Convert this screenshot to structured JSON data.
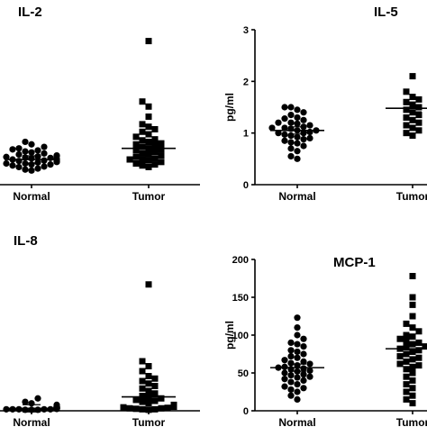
{
  "chart_data": [
    {
      "id": "il2",
      "type": "scatter",
      "title": "IL-2",
      "ylabel": "",
      "ylim": [
        0,
        3.2
      ],
      "yticks": [],
      "show_y_axis": false,
      "categories": [
        "Normal",
        "Tumor"
      ],
      "series": [
        {
          "marker": "circle",
          "values": [
            0.28,
            0.3,
            0.32,
            0.35,
            0.36,
            0.38,
            0.4,
            0.4,
            0.42,
            0.42,
            0.44,
            0.45,
            0.46,
            0.47,
            0.48,
            0.48,
            0.5,
            0.5,
            0.51,
            0.52,
            0.53,
            0.54,
            0.55,
            0.56,
            0.57,
            0.58,
            0.6,
            0.62,
            0.64,
            0.66,
            0.68,
            0.7,
            0.72,
            0.75,
            0.8,
            0.85
          ],
          "center": 0.5
        },
        {
          "marker": "square",
          "values": [
            0.35,
            0.38,
            0.4,
            0.42,
            0.45,
            0.48,
            0.5,
            0.5,
            0.52,
            0.55,
            0.58,
            0.6,
            0.62,
            0.65,
            0.68,
            0.7,
            0.72,
            0.75,
            0.78,
            0.8,
            0.82,
            0.85,
            0.88,
            0.9,
            0.95,
            1.0,
            1.05,
            1.1,
            1.15,
            1.2,
            1.35,
            1.55,
            1.65,
            2.85
          ],
          "center": 0.72
        }
      ]
    },
    {
      "id": "il5",
      "type": "scatter",
      "title": "IL-5",
      "ylabel": "pg/ml",
      "ylim": [
        0,
        3
      ],
      "yticks": [
        0,
        1,
        2,
        3
      ],
      "show_y_axis": true,
      "categories": [
        "Normal",
        "Tumor"
      ],
      "series": [
        {
          "marker": "circle",
          "values": [
            0.5,
            0.55,
            0.65,
            0.7,
            0.75,
            0.8,
            0.82,
            0.85,
            0.88,
            0.9,
            0.92,
            0.95,
            0.97,
            1.0,
            1.0,
            1.02,
            1.05,
            1.05,
            1.08,
            1.1,
            1.1,
            1.12,
            1.15,
            1.18,
            1.2,
            1.2,
            1.25,
            1.28,
            1.3,
            1.35,
            1.4,
            1.45,
            1.5,
            1.5
          ],
          "center": 1.05
        },
        {
          "marker": "square",
          "values": [
            0.95,
            1.0,
            1.05,
            1.1,
            1.15,
            1.2,
            1.25,
            1.3,
            1.35,
            1.4,
            1.45,
            1.5,
            1.55,
            1.6,
            1.65,
            1.7,
            1.8,
            2.1
          ],
          "center": 1.48
        }
      ]
    },
    {
      "id": "il8",
      "type": "scatter",
      "title": "IL-8",
      "ylabel": "",
      "ylim": [
        0,
        3.2
      ],
      "yticks": [],
      "show_y_axis": false,
      "categories": [
        "Normal",
        "Tumor"
      ],
      "series": [
        {
          "marker": "circle",
          "values": [
            0.02,
            0.02,
            0.02,
            0.03,
            0.03,
            0.03,
            0.03,
            0.03,
            0.04,
            0.04,
            0.04,
            0.04,
            0.05,
            0.05,
            0.05,
            0.05,
            0.05,
            0.06,
            0.06,
            0.06,
            0.06,
            0.07,
            0.07,
            0.07,
            0.08,
            0.08,
            0.08,
            0.09,
            0.1,
            0.12,
            0.15,
            0.18,
            0.25
          ],
          "center": 0.05
        },
        {
          "marker": "square",
          "values": [
            0.02,
            0.03,
            0.03,
            0.04,
            0.05,
            0.05,
            0.06,
            0.07,
            0.08,
            0.1,
            0.12,
            0.15,
            0.18,
            0.2,
            0.22,
            0.25,
            0.28,
            0.3,
            0.35,
            0.4,
            0.45,
            0.5,
            0.55,
            0.6,
            0.65,
            0.7,
            0.8,
            0.9,
            1.0,
            2.55
          ],
          "center": 0.28
        }
      ]
    },
    {
      "id": "mcp1",
      "type": "scatter",
      "title": "MCP-1",
      "ylabel": "pg/ml",
      "ylim": [
        0,
        200
      ],
      "yticks": [
        0,
        50,
        100,
        150,
        200
      ],
      "show_y_axis": true,
      "categories": [
        "Normal",
        "Tumor"
      ],
      "series": [
        {
          "marker": "circle",
          "values": [
            15,
            20,
            25,
            28,
            30,
            32,
            35,
            38,
            40,
            42,
            44,
            45,
            47,
            48,
            50,
            52,
            53,
            55,
            56,
            57,
            58,
            60,
            62,
            63,
            65,
            67,
            70,
            72,
            75,
            78,
            80,
            85,
            88,
            90,
            95,
            100,
            110,
            123
          ],
          "center": 57
        },
        {
          "marker": "square",
          "values": [
            10,
            15,
            20,
            25,
            30,
            35,
            40,
            45,
            50,
            55,
            58,
            60,
            62,
            65,
            68,
            70,
            72,
            75,
            78,
            80,
            82,
            84,
            85,
            88,
            90,
            92,
            95,
            98,
            100,
            105,
            110,
            115,
            125,
            140,
            150,
            178
          ],
          "center": 82
        }
      ]
    }
  ]
}
